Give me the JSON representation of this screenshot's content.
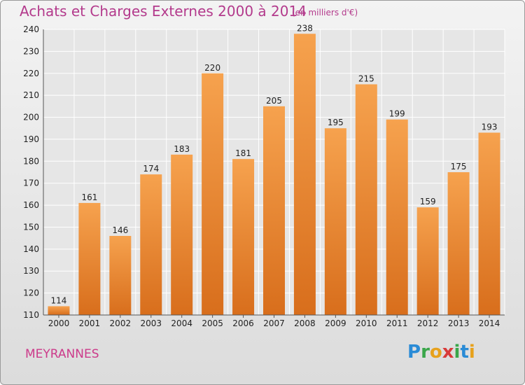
{
  "title": "Achats et Charges Externes 2000 à 2014",
  "subtitle": "(en milliers d'€)",
  "commune": "MEYRANNES",
  "logo_letters": [
    {
      "ch": "P",
      "color": "#2a8bd6"
    },
    {
      "ch": "r",
      "color": "#3aa64a"
    },
    {
      "ch": "o",
      "color": "#e7a11c"
    },
    {
      "ch": "x",
      "color": "#d83a3a"
    },
    {
      "ch": "i",
      "color": "#3aa64a"
    },
    {
      "ch": "t",
      "color": "#2a8bd6"
    },
    {
      "ch": "i",
      "color": "#e7a11c"
    }
  ],
  "colors": {
    "bar_light": "#f6a24e",
    "bar_dark": "#d86e1c",
    "grid": "#ffffff",
    "accent": "#b33a8c"
  },
  "chart_data": {
    "type": "bar",
    "categories": [
      "2000",
      "2001",
      "2002",
      "2003",
      "2004",
      "2005",
      "2006",
      "2007",
      "2008",
      "2009",
      "2010",
      "2011",
      "2012",
      "2013",
      "2014"
    ],
    "values": [
      114,
      161,
      146,
      174,
      183,
      220,
      181,
      205,
      238,
      195,
      215,
      199,
      159,
      175,
      193
    ],
    "ylim": [
      110,
      240
    ],
    "yticks": [
      110,
      120,
      130,
      140,
      150,
      160,
      170,
      180,
      190,
      200,
      210,
      220,
      230,
      240
    ],
    "grid": true,
    "data_labels": true
  }
}
